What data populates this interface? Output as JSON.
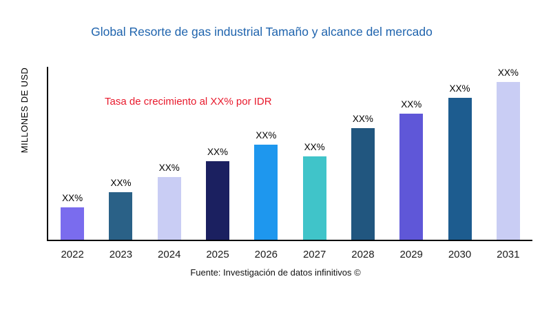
{
  "title": "Global Resorte de gas industrial Tamaño y alcance del mercado",
  "ylabel": "MILLONES DE USD",
  "annotation": "Tasa de crecimiento al XX% por IDR",
  "source": "Fuente: Investigación de datos infinitivos ©",
  "accent_colors": {
    "title_blue": "#1e63ad",
    "annotation_red": "#e8192c",
    "axis_black": "#000000"
  },
  "chart_data": {
    "type": "bar",
    "title": "Global Resorte de gas industrial Tamaño y alcance del mercado",
    "xlabel": "",
    "ylabel": "MILLONES DE USD",
    "grid": false,
    "legend": false,
    "categories": [
      "2022",
      "2023",
      "2024",
      "2025",
      "2026",
      "2027",
      "2028",
      "2029",
      "2030",
      "2031"
    ],
    "values": [
      47,
      69,
      91,
      114,
      138,
      121,
      162,
      183,
      206,
      229
    ],
    "bar_labels": [
      "XX%",
      "XX%",
      "XX%",
      "XX%",
      "XX%",
      "XX%",
      "XX%",
      "XX%",
      "XX%",
      "XX%"
    ],
    "bar_colors": [
      "#7a6cee",
      "#2a6187",
      "#c9cdf4",
      "#1b2060",
      "#1e97ee",
      "#40c4c9",
      "#21567f",
      "#5f57d8",
      "#1d5c8f",
      "#c9cdf4"
    ],
    "value_units": "relative-height-px",
    "annotation": "Tasa de crecimiento al XX% por IDR",
    "source": "Fuente: Investigación de datos infinitivos ©"
  }
}
